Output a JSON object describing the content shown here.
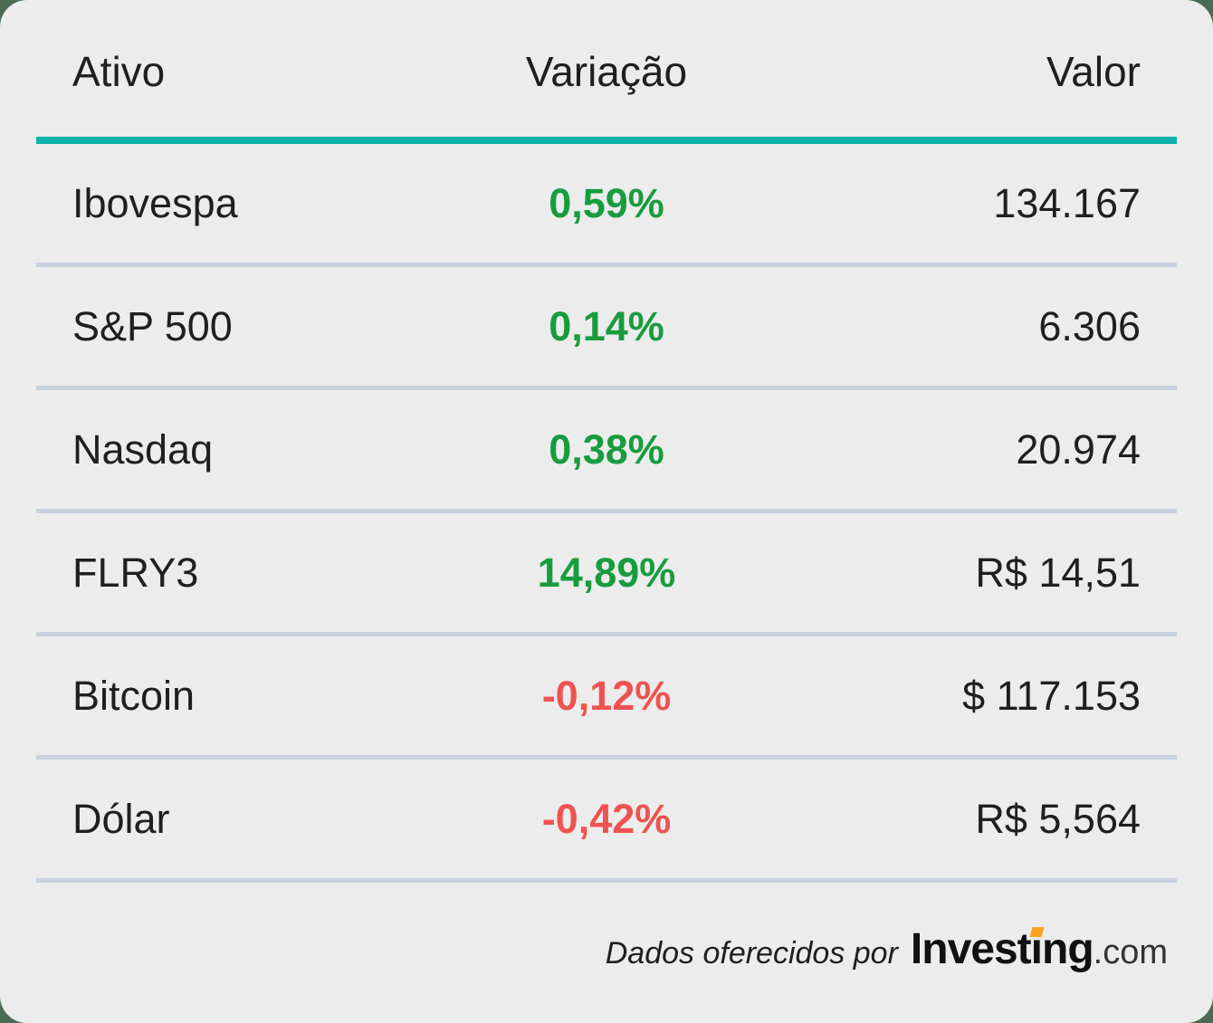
{
  "theme": {
    "outside": "#4C6B53",
    "card": "#ECECEC",
    "accent": "#0CB1AB",
    "divider": "#C9D1DF",
    "ink": "#1F1F1F",
    "up": "#189C3E",
    "down": "#EF534F",
    "orange": "#F6A320"
  },
  "table": {
    "headers": [
      "Ativo",
      "Variação",
      "Valor"
    ],
    "rows": [
      {
        "asset": "Ibovespa",
        "variation": "0,59%",
        "value": "134.167",
        "direction": "up"
      },
      {
        "asset": "S&P 500",
        "variation": "0,14%",
        "value": "6.306",
        "direction": "up"
      },
      {
        "asset": "Nasdaq",
        "variation": "0,38%",
        "value": "20.974",
        "direction": "up"
      },
      {
        "asset": "FLRY3",
        "variation": "14,89%",
        "value": "R$ 14,51",
        "direction": "up"
      },
      {
        "asset": "Bitcoin",
        "variation": "-0,12%",
        "value": "$ 117.153",
        "direction": "down"
      },
      {
        "asset": "Dólar",
        "variation": "-0,42%",
        "value": "R$ 5,564",
        "direction": "down"
      }
    ]
  },
  "footer": {
    "credit_text": "Dados oferecidos por",
    "logo_part1": "Invest",
    "logo_i": "ı",
    "logo_part2": "ng",
    "logo_suffix": ".com"
  },
  "chart_data": {
    "type": "table",
    "title": "",
    "columns": [
      "Ativo",
      "Variação",
      "Valor"
    ],
    "rows": [
      [
        "Ibovespa",
        "0,59%",
        "134.167"
      ],
      [
        "S&P 500",
        "0,14%",
        "6.306"
      ],
      [
        "Nasdaq",
        "0,38%",
        "20.974"
      ],
      [
        "FLRY3",
        "14,89%",
        "R$ 14,51"
      ],
      [
        "Bitcoin",
        "-0,12%",
        "$ 117.153"
      ],
      [
        "Dólar",
        "-0,42%",
        "R$ 5,564"
      ]
    ],
    "notes": "Positive variations rendered green, negative red; source credit Investing.com"
  }
}
